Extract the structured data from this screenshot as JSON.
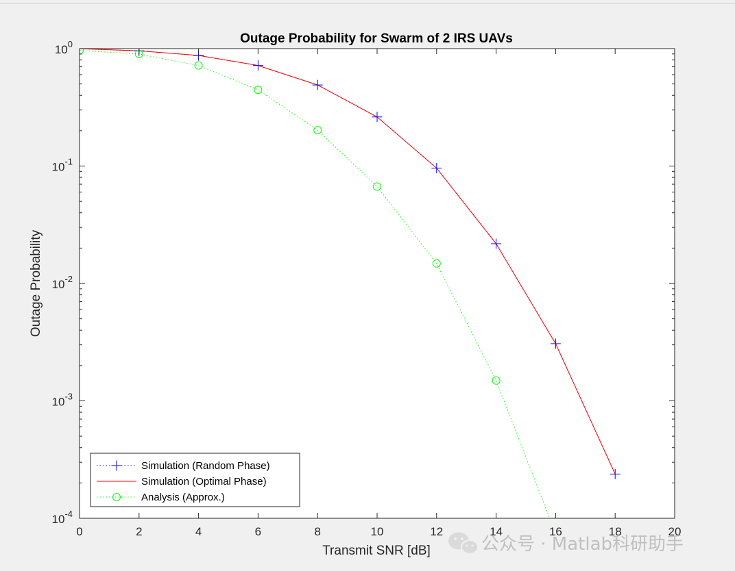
{
  "figure": {
    "background": "#f0f0f0",
    "axes_background": "#ffffff"
  },
  "chart_data": {
    "type": "line",
    "title": "Outage Probability for Swarm of 2 IRS UAVs",
    "xlabel": "Transmit SNR [dB]",
    "ylabel": "Outage Probability",
    "xlim": [
      0,
      20
    ],
    "ylim": [
      0.0001,
      1
    ],
    "yscale": "log",
    "grid": false,
    "xticks": [
      "0",
      "2",
      "4",
      "6",
      "8",
      "10",
      "12",
      "14",
      "16",
      "18",
      "20"
    ],
    "xtick_values": [
      0,
      2,
      4,
      6,
      8,
      10,
      12,
      14,
      16,
      18,
      20
    ],
    "yticks": [
      {
        "value": 1,
        "base": "10",
        "exp": "0"
      },
      {
        "value": 0.1,
        "base": "10",
        "exp": "-1"
      },
      {
        "value": 0.01,
        "base": "10",
        "exp": "-2"
      },
      {
        "value": 0.001,
        "base": "10",
        "exp": "-3"
      },
      {
        "value": 0.0001,
        "base": "10",
        "exp": "-4"
      }
    ],
    "legend_position": "bottom-left",
    "series": [
      {
        "name": "Simulation (Random Phase)",
        "color": "#0000ff",
        "line": "dotted",
        "marker": "plus",
        "x": [
          0,
          2,
          4,
          6,
          8,
          10,
          12,
          14,
          16,
          18
        ],
        "y": [
          0.998,
          0.958,
          0.874,
          0.718,
          0.49,
          0.262,
          0.096,
          0.0218,
          0.00307,
          0.000238
        ]
      },
      {
        "name": "Simulation (Optimal Phase)",
        "color": "#ff0000",
        "line": "solid",
        "marker": "none",
        "x": [
          0,
          2,
          4,
          6,
          8,
          10,
          12,
          14,
          16,
          18
        ],
        "y": [
          0.998,
          0.958,
          0.874,
          0.718,
          0.49,
          0.262,
          0.096,
          0.0218,
          0.00307,
          0.000238
        ]
      },
      {
        "name": "Analysis (Approx.)",
        "color": "#00ff00",
        "line": "dotted",
        "marker": "circle",
        "x": [
          0,
          2,
          4,
          6,
          8,
          10,
          12,
          14,
          15.8
        ],
        "y": [
          0.964,
          0.9,
          0.718,
          0.446,
          0.202,
          0.0668,
          0.0148,
          0.00149,
          0.0001
        ]
      }
    ]
  },
  "watermark": {
    "icon": "wechat-icon",
    "text": "公众号 · Matlab科研助手"
  }
}
